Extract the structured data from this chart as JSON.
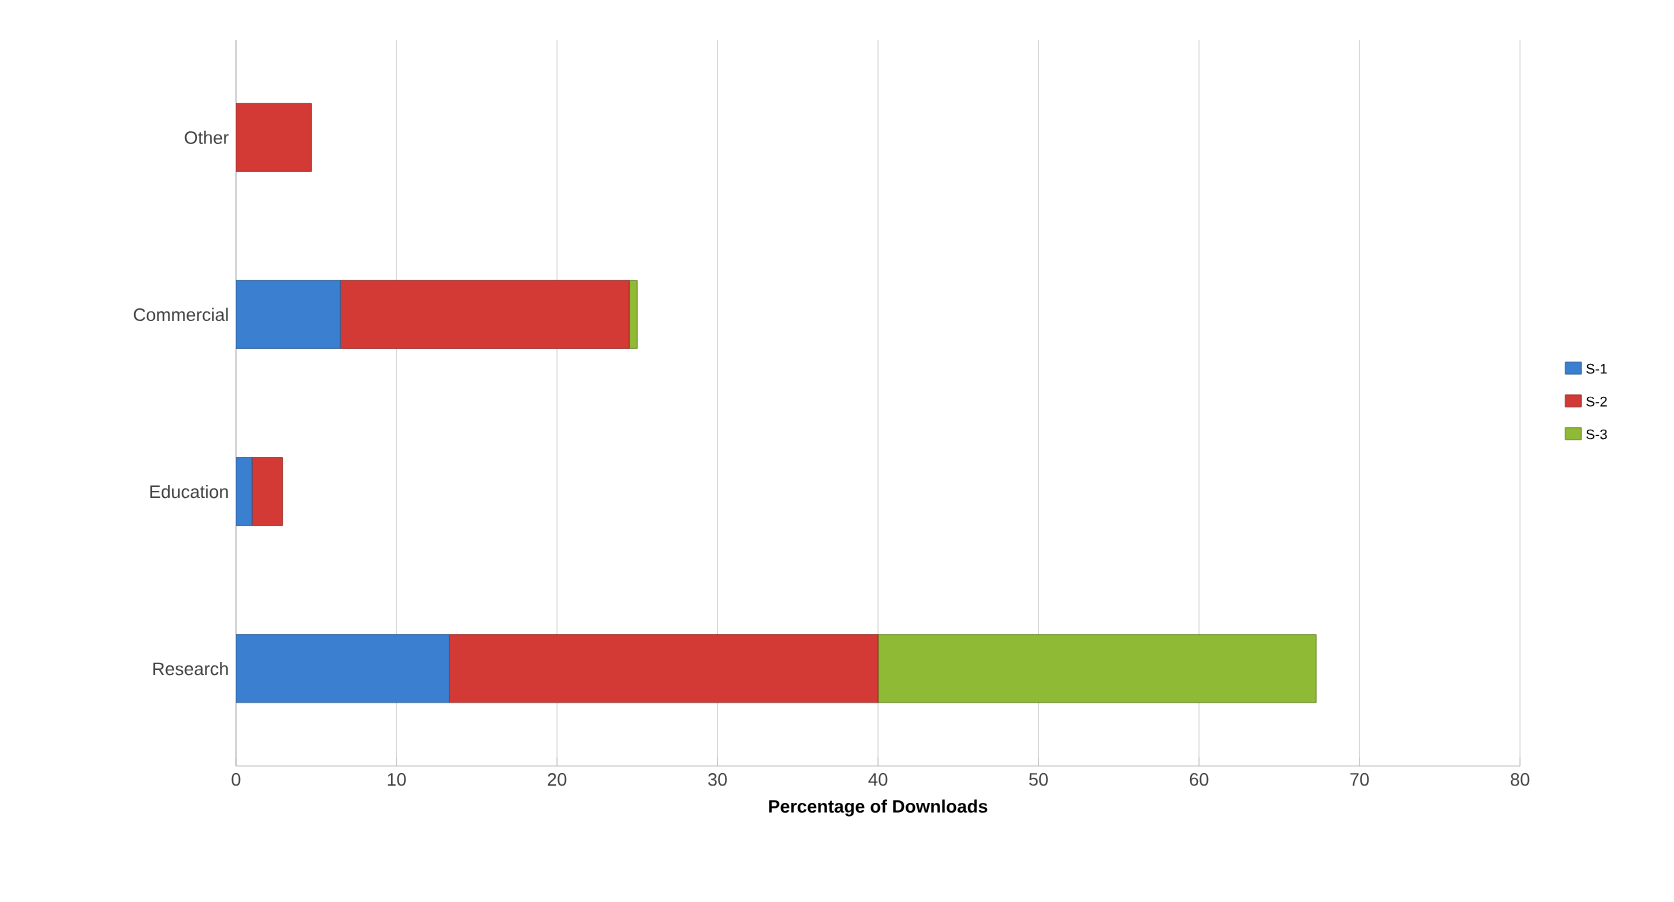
{
  "chart_data": {
    "type": "bar",
    "orientation": "horizontal",
    "stacked": true,
    "xlabel": "Percentage of Downloads",
    "categories": [
      "Other",
      "Commercial",
      "Education",
      "Research"
    ],
    "series": [
      {
        "name": "S-1",
        "color": "#3a7fd0",
        "values": [
          0,
          6.5,
          1.0,
          13.3
        ]
      },
      {
        "name": "S-2",
        "color": "#d33a36",
        "values": [
          4.7,
          18,
          1.9,
          26.7
        ]
      },
      {
        "name": "S-3",
        "color": "#8fba36",
        "values": [
          0,
          0.5,
          0,
          27.3
        ]
      }
    ],
    "xlim": [
      0,
      80
    ],
    "xticks": [
      0,
      10,
      20,
      30,
      40,
      50,
      60,
      70,
      80
    ],
    "grid": "x",
    "legend": "right"
  }
}
